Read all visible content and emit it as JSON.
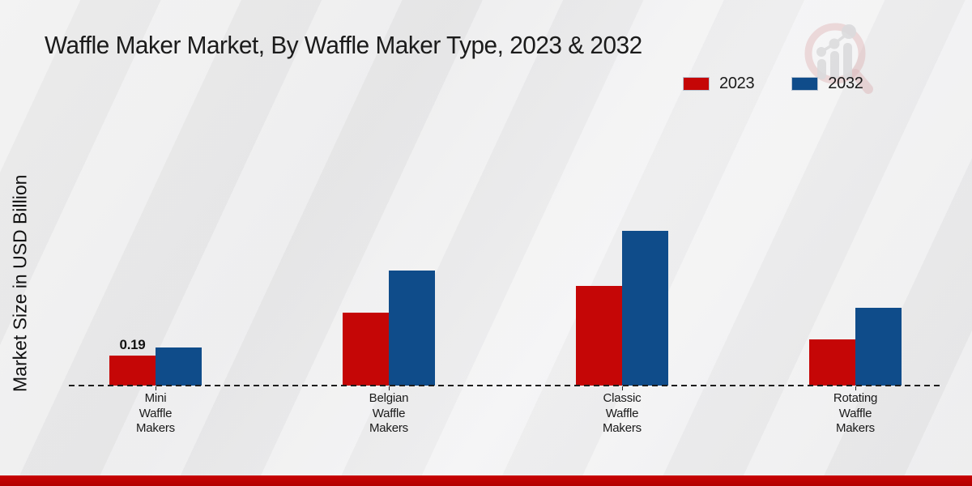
{
  "title": "Waffle Maker Market, By Waffle Maker Type, 2023 & 2032",
  "ylabel": "Market Size in USD Billion",
  "legend": {
    "items": [
      {
        "label": "2023",
        "color": "#c50606"
      },
      {
        "label": "2032",
        "color": "#0f4c8a"
      }
    ]
  },
  "chart_data": {
    "type": "bar",
    "title": "Waffle Maker Market, By Waffle Maker Type, 2023 & 2032",
    "xlabel": "",
    "ylabel": "Market Size in USD Billion",
    "unit": "USD Billion",
    "categories": [
      "Mini Waffle Makers",
      "Belgian Waffle Makers",
      "Classic Waffle Makers",
      "Rotating Waffle Makers"
    ],
    "tick_label_lines": [
      [
        "Mini",
        "Waffle",
        "Makers"
      ],
      [
        "Belgian",
        "Waffle",
        "Makers"
      ],
      [
        "Classic",
        "Waffle",
        "Makers"
      ],
      [
        "Rotating",
        "Waffle",
        "Makers"
      ]
    ],
    "series": [
      {
        "name": "2023",
        "color": "#c50606",
        "values": [
          0.19,
          0.46,
          0.63,
          0.29
        ]
      },
      {
        "name": "2032",
        "color": "#0f4c8a",
        "values": [
          0.24,
          0.73,
          0.98,
          0.49
        ]
      }
    ],
    "bar_labels": [
      {
        "series": 0,
        "category": 0,
        "text": "0.19"
      }
    ],
    "ylim": [
      0,
      1.05
    ],
    "grid": false,
    "baseline_style": "dashed",
    "legend_position": "top-right",
    "colors": {
      "accent_red": "#c50606",
      "accent_blue": "#0f4c8a",
      "footer_strip": "#c00000"
    }
  }
}
